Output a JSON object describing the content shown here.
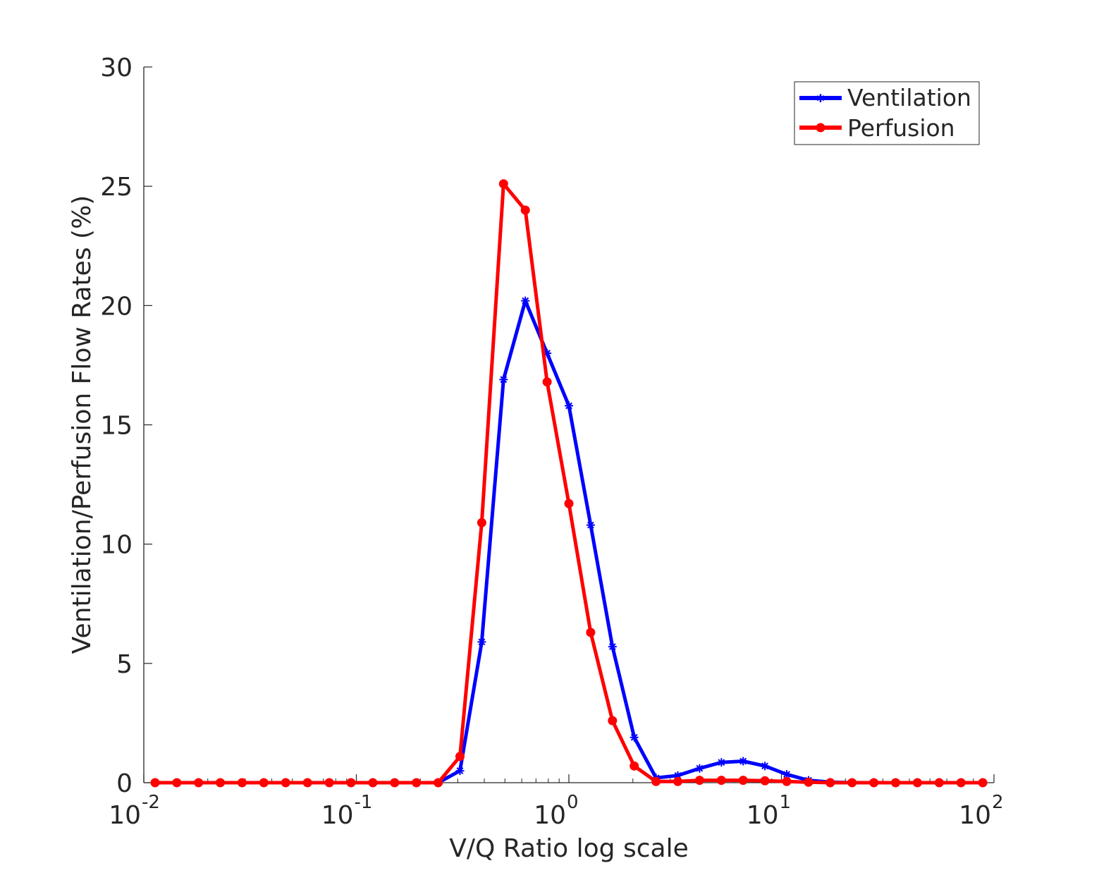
{
  "chart_data": {
    "type": "line",
    "title": "",
    "xlabel": "V/Q Ratio log scale",
    "ylabel": "Ventilation/Perfusion Flow Rates (%)",
    "xscale": "log",
    "xlim": [
      0.01,
      100
    ],
    "ylim": [
      0,
      30
    ],
    "x_ticks": [
      {
        "value": 0.01,
        "base": "10",
        "exp": "-2"
      },
      {
        "value": 0.1,
        "base": "10",
        "exp": "-1"
      },
      {
        "value": 1,
        "base": "10",
        "exp": "0"
      },
      {
        "value": 10,
        "base": "10",
        "exp": "1"
      },
      {
        "value": 100,
        "base": "10",
        "exp": "2"
      }
    ],
    "y_ticks": [
      0,
      5,
      10,
      15,
      20,
      25,
      30
    ],
    "grid": false,
    "legend_position": "top-right",
    "x": [
      0.0113,
      0.0143,
      0.0181,
      0.0229,
      0.029,
      0.0367,
      0.0465,
      0.0589,
      0.0746,
      0.0944,
      0.1196,
      0.1514,
      0.1917,
      0.2427,
      0.3073,
      0.3891,
      0.4927,
      0.6238,
      0.7898,
      1.0,
      1.2662,
      1.6032,
      2.0299,
      2.5702,
      3.2543,
      4.1205,
      5.2172,
      6.6058,
      8.3641,
      10.5903,
      13.4091,
      16.9781,
      21.497,
      27.2188,
      34.4636,
      43.6367,
      55.2513,
      69.9571,
      88.5777
    ],
    "series": [
      {
        "name": "Ventilation",
        "color": "#0000ff",
        "marker": "star",
        "values": [
          0,
          0,
          0,
          0,
          0,
          0,
          0,
          0,
          0,
          0,
          0,
          0,
          0,
          0,
          0.5,
          5.9,
          16.9,
          20.2,
          18.0,
          15.8,
          10.8,
          5.7,
          1.9,
          0.2,
          0.3,
          0.6,
          0.85,
          0.9,
          0.7,
          0.35,
          0.1,
          0.02,
          0,
          0,
          0,
          0,
          0,
          0,
          0
        ]
      },
      {
        "name": "Perfusion",
        "color": "#ff0000",
        "marker": "circle",
        "values": [
          0,
          0,
          0,
          0,
          0,
          0,
          0,
          0,
          0,
          0,
          0,
          0,
          0,
          0,
          1.1,
          10.9,
          25.1,
          24.0,
          16.8,
          11.7,
          6.3,
          2.6,
          0.7,
          0.05,
          0.05,
          0.1,
          0.1,
          0.1,
          0.08,
          0.05,
          0.02,
          0,
          0,
          0,
          0,
          0,
          0,
          0,
          0
        ]
      }
    ]
  }
}
